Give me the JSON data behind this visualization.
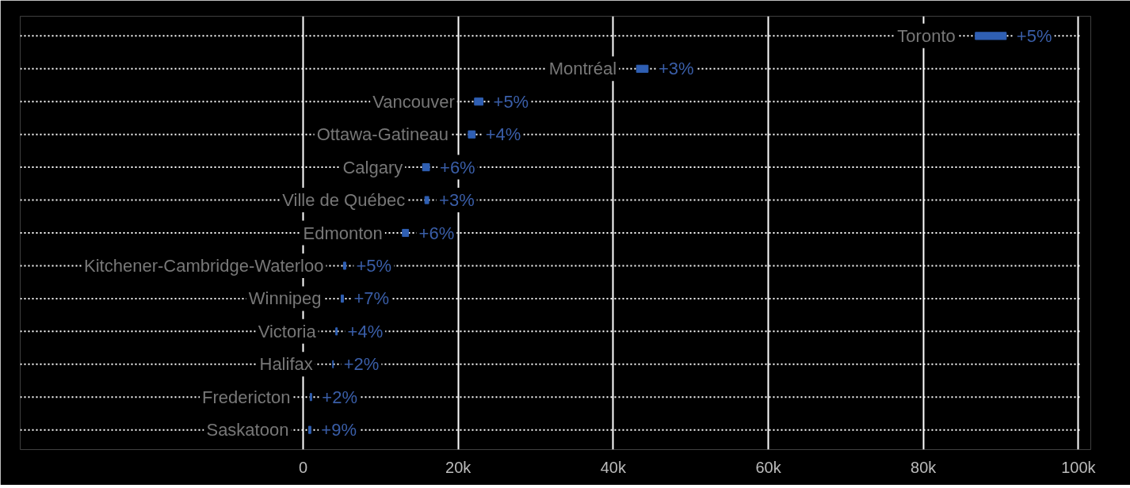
{
  "chart_data": {
    "type": "bar",
    "orientation": "horizontal",
    "categories": [
      "Toronto",
      "Montréal",
      "Vancouver",
      "Ottawa-Gatineau",
      "Calgary",
      "Ville de Québec",
      "Edmonton",
      "Kitchener-Cambridge-Waterloo",
      "Winnipeg",
      "Victoria",
      "Halifax",
      "Fredericton",
      "Saskatoon"
    ],
    "base": [
      86700,
      43000,
      22100,
      21300,
      15400,
      15700,
      12800,
      5200,
      4900,
      4200,
      3800,
      900,
      700
    ],
    "values": [
      4000,
      1500,
      1100,
      900,
      900,
      500,
      800,
      300,
      300,
      200,
      100,
      200,
      300
    ],
    "annotations": [
      {
        "text": "+5%",
        "x": 90700,
        "y": "Toronto"
      },
      {
        "text": "+3%",
        "x": 44500,
        "y": "Montréal"
      },
      {
        "text": "+5%",
        "x": 23200,
        "y": "Vancouver"
      },
      {
        "text": "+4%",
        "x": 22200,
        "y": "Ottawa-Gatineau"
      },
      {
        "text": "+6%",
        "x": 16300,
        "y": "Calgary"
      },
      {
        "text": "+3%",
        "x": 16200,
        "y": "Ville de Québec"
      },
      {
        "text": "+6%",
        "x": 13600,
        "y": "Edmonton"
      },
      {
        "text": "+5%",
        "x": 5500,
        "y": "Kitchener-Cambridge-Waterloo"
      },
      {
        "text": "+7%",
        "x": 5200,
        "y": "Winnipeg"
      },
      {
        "text": "+4%",
        "x": 4400,
        "y": "Victoria"
      },
      {
        "text": "+2%",
        "x": 3900,
        "y": "Halifax"
      },
      {
        "text": "+2%",
        "x": 1100,
        "y": "Fredericton"
      },
      {
        "text": "+9%",
        "x": 1000,
        "y": "Saskatoon"
      }
    ],
    "color": "#2f5fb3",
    "xlim": [
      -36500,
      101600
    ],
    "xticks": [
      0,
      {
        "value": 20000,
        "label": "20k"
      },
      {
        "value": 40000,
        "label": "40k"
      },
      {
        "value": 60000,
        "label": "60k"
      },
      {
        "value": 80000,
        "label": "80k"
      },
      {
        "value": 100000,
        "label": "100k"
      }
    ],
    "grid": true
  }
}
